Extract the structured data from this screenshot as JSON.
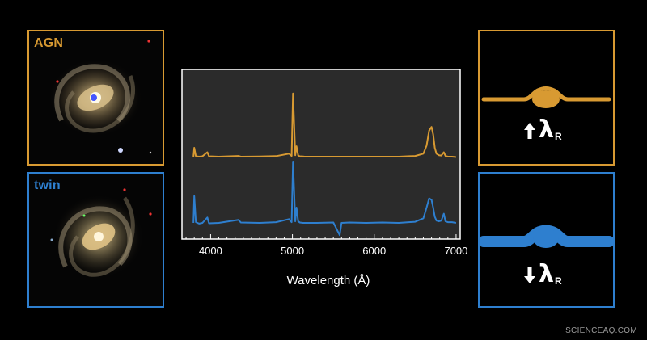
{
  "colors": {
    "agn": "#d89a32",
    "twin": "#2e7fcf",
    "plot_bg": "#2b2b2b",
    "plot_border": "#ffffff"
  },
  "panels": {
    "agn": {
      "label": "AGN"
    },
    "twin": {
      "label": "twin"
    }
  },
  "plot": {
    "xlabel": "Wavelength (Å)",
    "ticks": [
      "4000",
      "5000",
      "6000",
      "7000"
    ]
  },
  "indicators": {
    "agn": {
      "direction": "up",
      "symbol": "λ",
      "subscript": "R"
    },
    "twin": {
      "direction": "down",
      "symbol": "λ",
      "subscript": "R"
    }
  },
  "credit": "SCIENCEAQ.COM",
  "chart_data": {
    "type": "line",
    "xlabel": "Wavelength (Å)",
    "ylabel": "",
    "xlim": [
      3650,
      7050
    ],
    "x_ticks": [
      4000,
      5000,
      6000,
      7000
    ],
    "series": [
      {
        "name": "AGN",
        "color": "#d89a32",
        "x": [
          3790,
          3800,
          3820,
          3860,
          3900,
          3960,
          3980,
          4100,
          4340,
          4370,
          4600,
          4800,
          4959,
          4990,
          5007,
          5035,
          5050,
          5070,
          5090,
          5130,
          5150,
          5300,
          5500,
          5700,
          5900,
          6100,
          6300,
          6500,
          6600,
          6640,
          6670,
          6700,
          6720,
          6740,
          6760,
          6790,
          6820,
          6850,
          6870,
          6900,
          6950,
          7000
        ],
        "y": [
          1.0,
          2.2,
          1.05,
          1.0,
          1.05,
          1.6,
          1.05,
          1.0,
          1.1,
          1.0,
          1.02,
          1.08,
          1.4,
          1.1,
          9.5,
          1.2,
          2.4,
          1.15,
          1.05,
          1.02,
          1.0,
          1.0,
          1.0,
          1.0,
          1.0,
          1.0,
          1.0,
          1.1,
          1.4,
          2.5,
          4.5,
          5.0,
          4.0,
          2.2,
          1.4,
          1.2,
          1.15,
          1.6,
          1.1,
          1.0,
          1.0,
          0.95
        ]
      },
      {
        "name": "twin",
        "color": "#2e7fcf",
        "x": [
          3790,
          3800,
          3820,
          3860,
          3900,
          3960,
          3980,
          4100,
          4340,
          4370,
          4600,
          4800,
          4959,
          4990,
          5007,
          5035,
          5050,
          5070,
          5090,
          5130,
          5150,
          5300,
          5500,
          5577,
          5600,
          5700,
          5900,
          6100,
          6300,
          6500,
          6600,
          6640,
          6670,
          6700,
          6720,
          6740,
          6760,
          6790,
          6820,
          6850,
          6870,
          6900,
          6950,
          7000
        ],
        "y": [
          1.0,
          4.5,
          1.1,
          0.9,
          1.0,
          1.7,
          0.95,
          1.0,
          1.4,
          1.05,
          1.0,
          1.1,
          1.5,
          1.1,
          9.0,
          1.2,
          3.0,
          1.2,
          1.05,
          1.0,
          1.0,
          1.0,
          1.05,
          -0.6,
          1.0,
          1.05,
          1.0,
          1.05,
          1.0,
          1.15,
          1.6,
          3.0,
          4.2,
          4.0,
          3.0,
          1.8,
          1.3,
          1.2,
          1.3,
          2.2,
          1.2,
          1.1,
          1.1,
          1.0
        ]
      }
    ]
  }
}
